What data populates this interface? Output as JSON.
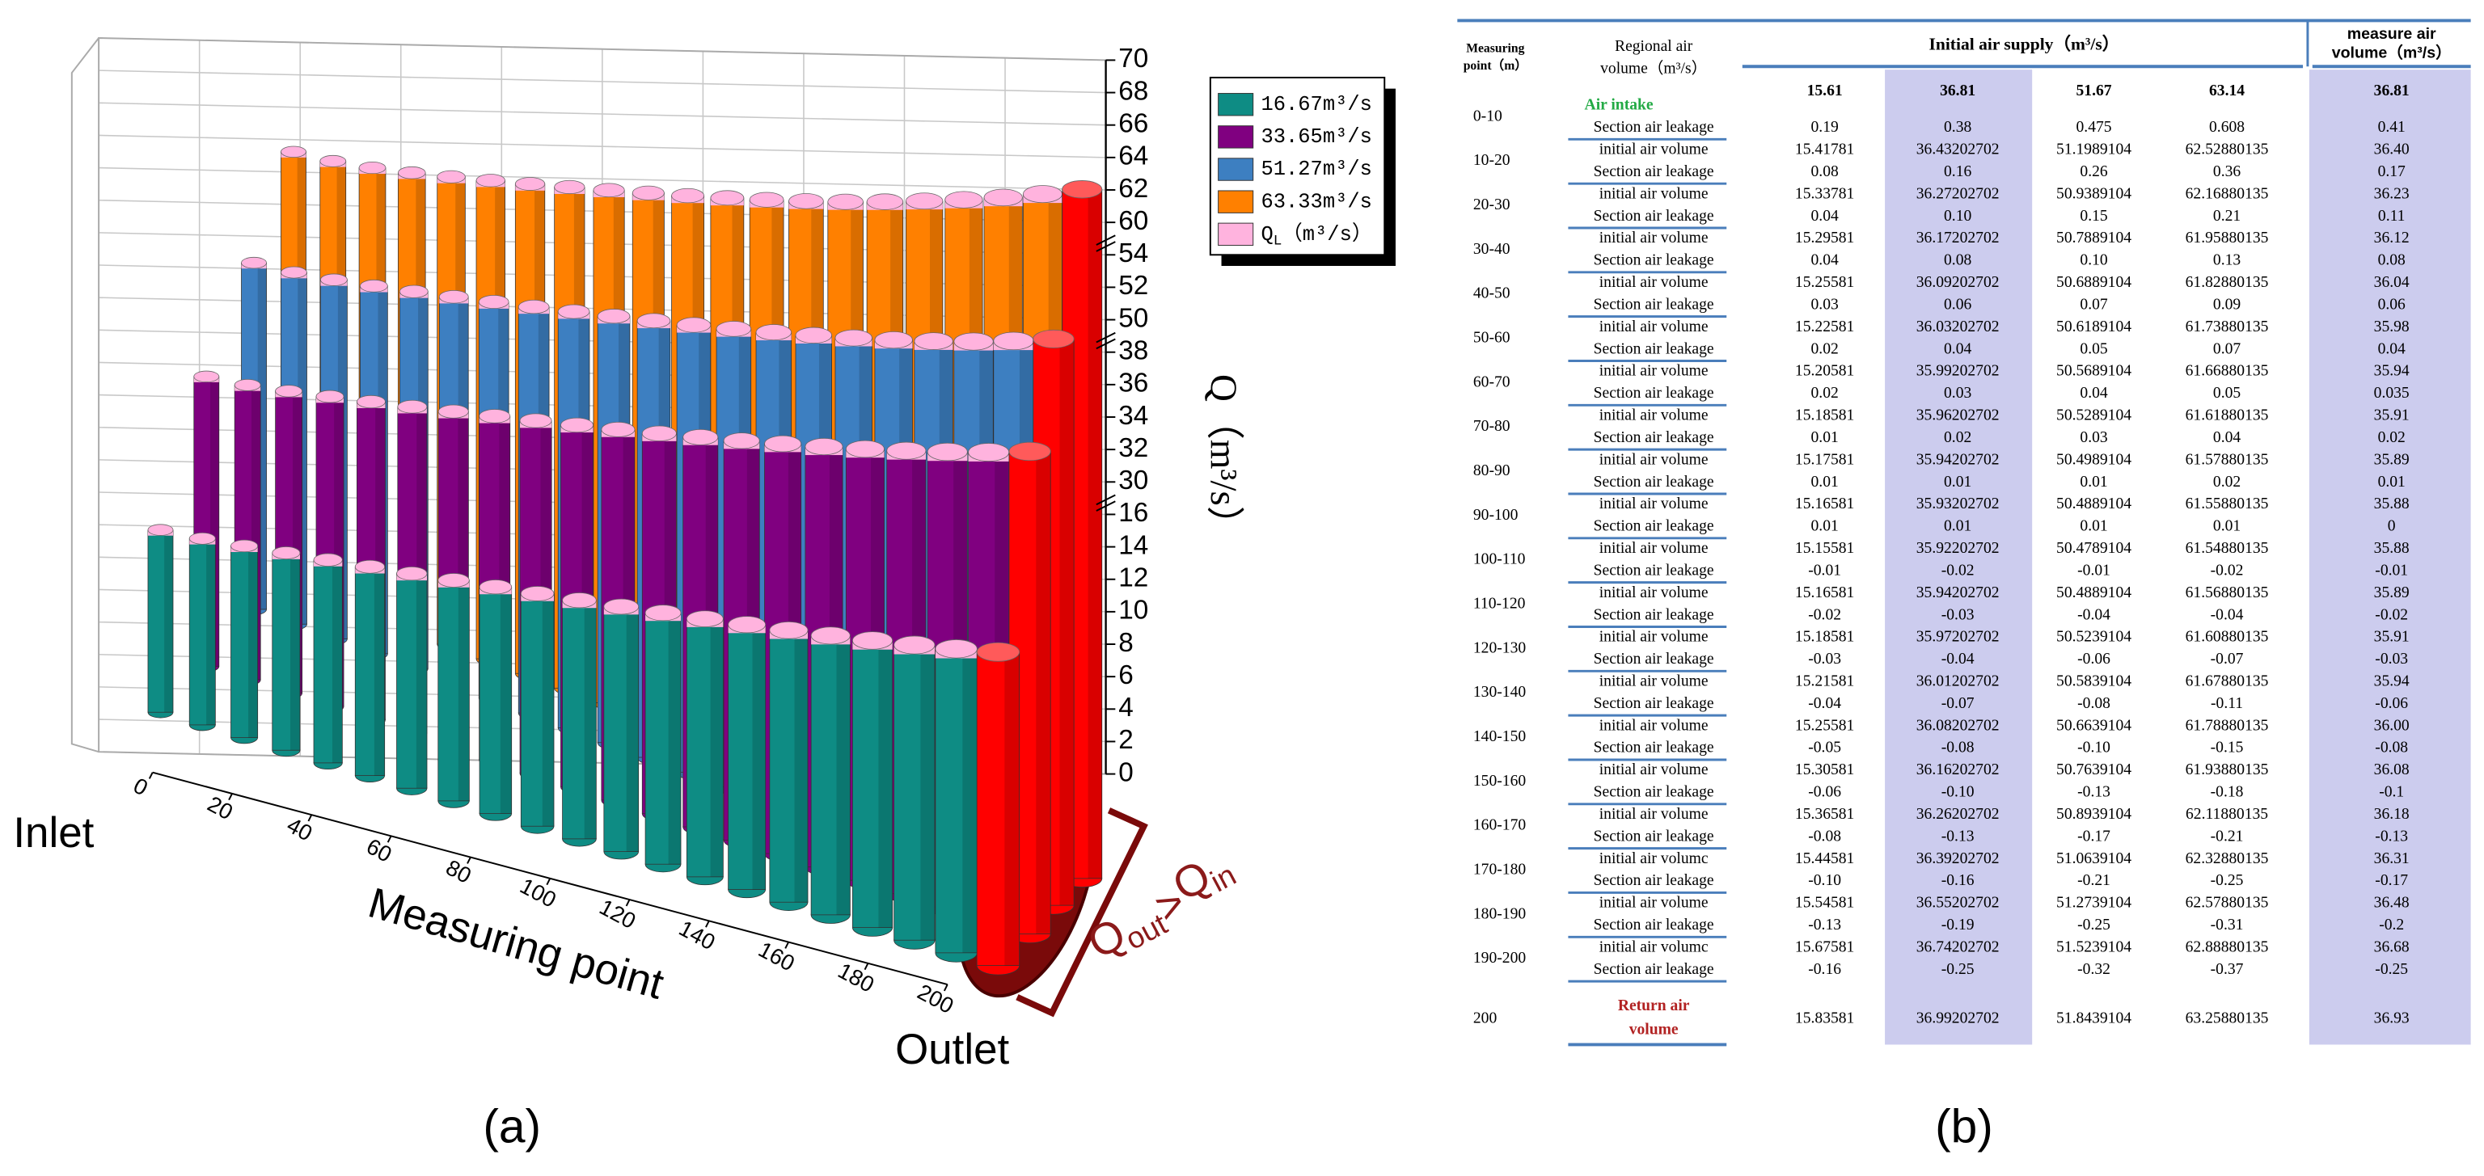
{
  "chart_data": {
    "type": "bar3d",
    "x_label": "Measuring point",
    "y_label": "Q（m³/s）",
    "x": [
      0,
      10,
      20,
      30,
      40,
      50,
      60,
      70,
      80,
      90,
      100,
      110,
      120,
      130,
      140,
      150,
      160,
      170,
      180,
      190,
      200
    ],
    "xlim": [
      0,
      200
    ],
    "xticks": [
      0,
      20,
      40,
      60,
      80,
      100,
      120,
      140,
      160,
      180,
      200
    ],
    "ylim": [
      0,
      70
    ],
    "yticks": [
      0,
      2,
      4,
      6,
      8,
      10,
      12,
      14,
      16,
      30,
      32,
      34,
      36,
      38,
      50,
      52,
      54,
      60,
      62,
      64,
      66,
      68,
      70
    ],
    "series": [
      {
        "name": "16.67m³/s",
        "color": "#0e8c84",
        "values": [
          15.61,
          15.42,
          15.34,
          15.3,
          15.26,
          15.23,
          15.21,
          15.19,
          15.18,
          15.17,
          15.16,
          15.17,
          15.19,
          15.22,
          15.26,
          15.31,
          15.37,
          15.45,
          15.55,
          15.68,
          15.84
        ]
      },
      {
        "name": "33.65m³/s",
        "color": "#800080",
        "values": [
          36.81,
          36.43,
          36.27,
          36.17,
          36.09,
          36.03,
          35.99,
          35.96,
          35.94,
          35.93,
          35.92,
          35.94,
          35.97,
          36.01,
          36.08,
          36.16,
          36.26,
          36.39,
          36.55,
          36.74,
          36.99
        ]
      },
      {
        "name": "51.27m³/s",
        "color": "#3d7fc1",
        "values": [
          51.67,
          51.2,
          50.94,
          50.79,
          50.69,
          50.62,
          50.57,
          50.53,
          50.5,
          50.49,
          50.48,
          50.49,
          50.52,
          50.58,
          50.66,
          50.76,
          50.89,
          51.06,
          51.27,
          51.52,
          51.84
        ]
      },
      {
        "name": "63.33m³/s",
        "color": "#ff8000",
        "values": [
          63.14,
          62.53,
          62.17,
          61.96,
          61.83,
          61.74,
          61.67,
          61.62,
          61.58,
          61.56,
          61.55,
          61.57,
          61.61,
          61.68,
          61.79,
          61.94,
          62.12,
          62.33,
          62.58,
          62.89,
          63.26
        ]
      }
    ],
    "leakage": {
      "name": [
        "Q",
        "L",
        "（m³/s）"
      ],
      "color": "#ffb3de"
    },
    "outlet_color": "#ff0000",
    "annotations": {
      "inlet": "Inlet",
      "outlet": "Outlet",
      "relation": [
        "Q",
        "out",
        ">",
        "Q",
        "in"
      ]
    },
    "caption": "(a)"
  },
  "table": {
    "header": {
      "measuring_point": [
        "Measuring",
        "point（m）"
      ],
      "regional": [
        "Regional air",
        "volume（m³/s）"
      ],
      "initial": "Initial air supply（m³/s）",
      "measure": [
        "measure air",
        "volume（m³/s）"
      ],
      "supply": [
        "15.61",
        "36.81",
        "51.67",
        "63.14",
        "36.81"
      ]
    },
    "intake": {
      "range": "0-10",
      "label": "Air intake",
      "leakage_label": "Section air leakage",
      "leakage": [
        "0.19",
        "0.38",
        "0.475",
        "0.608",
        "0.41"
      ]
    },
    "rows": [
      {
        "range": "10-20",
        "initial_label": "initial air volume",
        "initial": [
          "15.41781",
          "36.43202702",
          "51.1989104",
          "62.52880135",
          "36.40"
        ],
        "leakage_label": "Section air leakage",
        "leakage": [
          "0.08",
          "0.16",
          "0.26",
          "0.36",
          "0.17"
        ]
      },
      {
        "range": "20-30",
        "initial_label": "initial air volume",
        "initial": [
          "15.33781",
          "36.27202702",
          "50.9389104",
          "62.16880135",
          "36.23"
        ],
        "leakage_label": "Section air leakage",
        "leakage": [
          "0.04",
          "0.10",
          "0.15",
          "0.21",
          "0.11"
        ]
      },
      {
        "range": "30-40",
        "initial_label": "initial air volume",
        "initial": [
          "15.29581",
          "36.17202702",
          "50.7889104",
          "61.95880135",
          "36.12"
        ],
        "leakage_label": "Section air leakage",
        "leakage": [
          "0.04",
          "0.08",
          "0.10",
          "0.13",
          "0.08"
        ]
      },
      {
        "range": "40-50",
        "initial_label": "initial air volume",
        "initial": [
          "15.25581",
          "36.09202702",
          "50.6889104",
          "61.82880135",
          "36.04"
        ],
        "leakage_label": "Section air leakage",
        "leakage": [
          "0.03",
          "0.06",
          "0.07",
          "0.09",
          "0.06"
        ]
      },
      {
        "range": "50-60",
        "initial_label": "initial air volume",
        "initial": [
          "15.22581",
          "36.03202702",
          "50.6189104",
          "61.73880135",
          "35.98"
        ],
        "leakage_label": "Section air leakage",
        "leakage": [
          "0.02",
          "0.04",
          "0.05",
          "0.07",
          "0.04"
        ]
      },
      {
        "range": "60-70",
        "initial_label": "initial air volume",
        "initial": [
          "15.20581",
          "35.99202702",
          "50.5689104",
          "61.66880135",
          "35.94"
        ],
        "leakage_label": "Section air leakage",
        "leakage": [
          "0.02",
          "0.03",
          "0.04",
          "0.05",
          "0.035"
        ]
      },
      {
        "range": "70-80",
        "initial_label": "initial air volume",
        "initial": [
          "15.18581",
          "35.96202702",
          "50.5289104",
          "61.61880135",
          "35.91"
        ],
        "leakage_label": "Section air leakage",
        "leakage": [
          "0.01",
          "0.02",
          "0.03",
          "0.04",
          "0.02"
        ]
      },
      {
        "range": "80-90",
        "initial_label": "initial air volume",
        "initial": [
          "15.17581",
          "35.94202702",
          "50.4989104",
          "61.57880135",
          "35.89"
        ],
        "leakage_label": "Section air leakage",
        "leakage": [
          "0.01",
          "0.01",
          "0.01",
          "0.02",
          "0.01"
        ]
      },
      {
        "range": "90-100",
        "initial_label": "initial air volume",
        "initial": [
          "15.16581",
          "35.93202702",
          "50.4889104",
          "61.55880135",
          "35.88"
        ],
        "leakage_label": "Section air leakage",
        "leakage": [
          "0.01",
          "0.01",
          "0.01",
          "0.01",
          "0"
        ]
      },
      {
        "range": "100-110",
        "initial_label": "initial air volume",
        "initial": [
          "15.15581",
          "35.92202702",
          "50.4789104",
          "61.54880135",
          "35.88"
        ],
        "leakage_label": "Section air leakage",
        "leakage": [
          "-0.01",
          "-0.02",
          "-0.01",
          "-0.02",
          "-0.01"
        ]
      },
      {
        "range": "110-120",
        "initial_label": "initial air volume",
        "initial": [
          "15.16581",
          "35.94202702",
          "50.4889104",
          "61.56880135",
          "35.89"
        ],
        "leakage_label": "Section air leakage",
        "leakage": [
          "-0.02",
          "-0.03",
          "-0.04",
          "-0.04",
          "-0.02"
        ]
      },
      {
        "range": "120-130",
        "initial_label": "initial air volume",
        "initial": [
          "15.18581",
          "35.97202702",
          "50.5239104",
          "61.60880135",
          "35.91"
        ],
        "leakage_label": "Section air leakage",
        "leakage": [
          "-0.03",
          "-0.04",
          "-0.06",
          "-0.07",
          "-0.03"
        ]
      },
      {
        "range": "130-140",
        "initial_label": "initial air volume",
        "initial": [
          "15.21581",
          "36.01202702",
          "50.5839104",
          "61.67880135",
          "35.94"
        ],
        "leakage_label": "Section air leakage",
        "leakage": [
          "-0.04",
          "-0.07",
          "-0.08",
          "-0.11",
          "-0.06"
        ]
      },
      {
        "range": "140-150",
        "initial_label": "initial air volume",
        "initial": [
          "15.25581",
          "36.08202702",
          "50.6639104",
          "61.78880135",
          "36.00"
        ],
        "leakage_label": "Section air leakage",
        "leakage": [
          "-0.05",
          "-0.08",
          "-0.10",
          "-0.15",
          "-0.08"
        ]
      },
      {
        "range": "150-160",
        "initial_label": "initial air volume",
        "initial": [
          "15.30581",
          "36.16202702",
          "50.7639104",
          "61.93880135",
          "36.08"
        ],
        "leakage_label": "Section air leakage",
        "leakage": [
          "-0.06",
          "-0.10",
          "-0.13",
          "-0.18",
          "-0.1"
        ]
      },
      {
        "range": "160-170",
        "initial_label": "initial air volume",
        "initial": [
          "15.36581",
          "36.26202702",
          "50.8939104",
          "62.11880135",
          "36.18"
        ],
        "leakage_label": "Section air leakage",
        "leakage": [
          "-0.08",
          "-0.13",
          "-0.17",
          "-0.21",
          "-0.13"
        ]
      },
      {
        "range": "170-180",
        "initial_label": "initial air volumc",
        "initial": [
          "15.44581",
          "36.39202702",
          "51.0639104",
          "62.32880135",
          "36.31"
        ],
        "leakage_label": "Section air leakage",
        "leakage": [
          "-0.10",
          "-0.16",
          "-0.21",
          "-0.25",
          "-0.17"
        ]
      },
      {
        "range": "180-190",
        "initial_label": "initial air volume",
        "initial": [
          "15.54581",
          "36.55202702",
          "51.2739104",
          "62.57880135",
          "36.48"
        ],
        "leakage_label": "Section air leakage",
        "leakage": [
          "-0.13",
          "-0.19",
          "-0.25",
          "-0.31",
          "-0.2"
        ]
      },
      {
        "range": "190-200",
        "initial_label": "initial air volumc",
        "initial": [
          "15.67581",
          "36.74202702",
          "51.5239104",
          "62.88880135",
          "36.68"
        ],
        "leakage_label": "Section air leakage",
        "leakage": [
          "-0.16",
          "-0.25",
          "-0.32",
          "-0.37",
          "-0.25"
        ]
      }
    ],
    "return": {
      "range": "200",
      "label": [
        "Return air",
        "volume"
      ],
      "values": [
        "15.83581",
        "36.99202702",
        "51.8439104",
        "63.25880135",
        "36.93"
      ]
    },
    "caption": "(b)"
  }
}
